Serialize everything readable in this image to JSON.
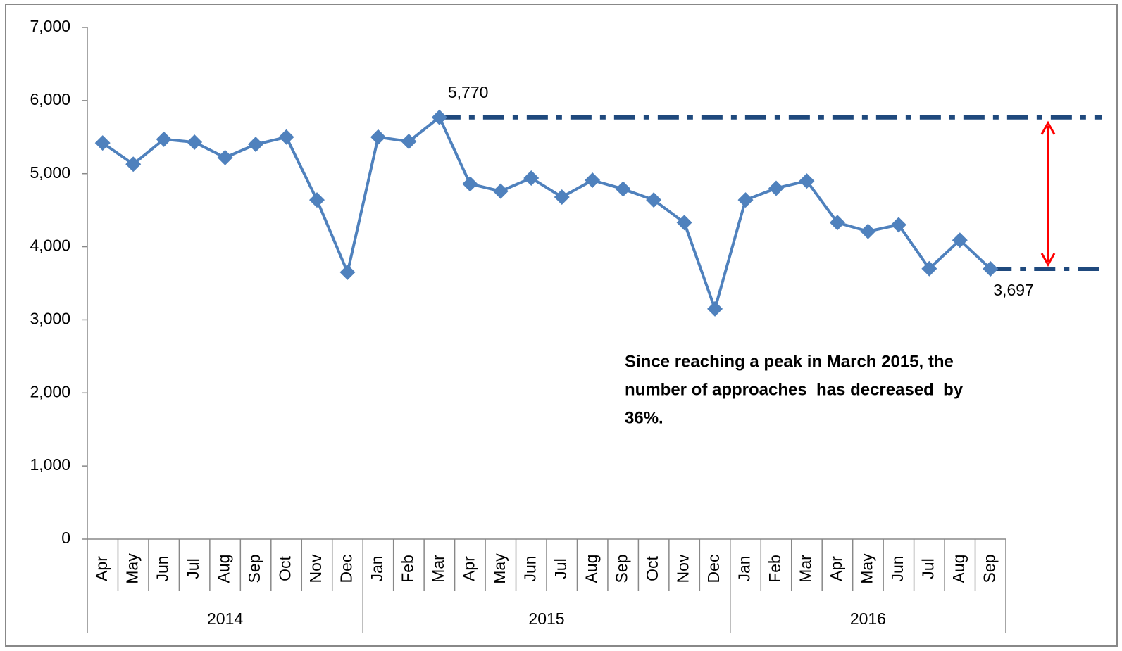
{
  "chart_data": {
    "type": "line",
    "groups": [
      {
        "label": "2014",
        "categories": [
          "Apr",
          "May",
          "Jun",
          "Jul",
          "Aug",
          "Sep",
          "Oct",
          "Nov",
          "Dec"
        ]
      },
      {
        "label": "2015",
        "categories": [
          "Jan",
          "Feb",
          "Mar",
          "Apr",
          "May",
          "Jun",
          "Jul",
          "Aug",
          "Sep",
          "Oct",
          "Nov",
          "Dec"
        ]
      },
      {
        "label": "2016",
        "categories": [
          "Jan",
          "Feb",
          "Mar",
          "Apr",
          "May",
          "Jun",
          "Jul",
          "Aug",
          "Sep"
        ]
      }
    ],
    "series": [
      {
        "color": "#4f81bd",
        "values": [
          5420,
          5130,
          5470,
          5430,
          5220,
          5400,
          5500,
          4640,
          3650,
          5500,
          5440,
          5770,
          4860,
          4760,
          4940,
          4680,
          4910,
          4790,
          4640,
          4330,
          3150,
          4640,
          4800,
          4900,
          4330,
          4210,
          4300,
          3700,
          4090,
          3697
        ]
      }
    ],
    "ylim": [
      0,
      7000
    ],
    "yticks": [
      {
        "value": 0,
        "label": "0"
      },
      {
        "value": 1000,
        "label": "1,000"
      },
      {
        "value": 2000,
        "label": "2,000"
      },
      {
        "value": 3000,
        "label": "3,000"
      },
      {
        "value": 4000,
        "label": "4,000"
      },
      {
        "value": 5000,
        "label": "5,000"
      },
      {
        "value": 6000,
        "label": "6,000"
      },
      {
        "value": 7000,
        "label": "7,000"
      }
    ],
    "reference_lines": [
      {
        "value": 5770,
        "label": "5,770",
        "color": "#1f497d"
      },
      {
        "value": 3697,
        "label": "3,697",
        "color": "#1f497d"
      }
    ],
    "arrow_color": "#ff0000",
    "annotation": [
      "Since reaching a peak in March 2015, the",
      "number of approaches  has decreased  by",
      "36%."
    ]
  }
}
